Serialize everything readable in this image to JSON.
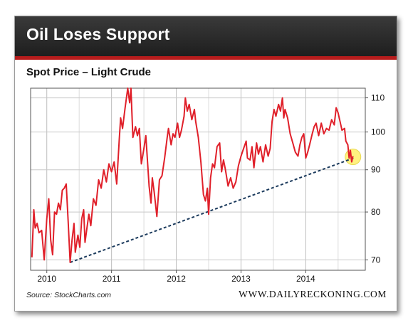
{
  "header": {
    "title": "Oil Loses Support"
  },
  "footer": {
    "source": "Source: StockCharts.com",
    "brand": "WWW.DAILYRECKONING.COM"
  },
  "colors": {
    "header_bg": "#262626",
    "accent": "#b71c1c",
    "series": "#e0202a",
    "trendline": "#1b3a5c",
    "highlight": "#fff27a"
  },
  "chart_data": {
    "type": "line",
    "title": "Spot Price – Light Crude",
    "xlabel": "",
    "ylabel": "",
    "xlim": [
      2009.75,
      2014.92
    ],
    "ylim": [
      68,
      113
    ],
    "y_scale": "log",
    "y_axis_side": "right",
    "grid": true,
    "xticks": [
      2010,
      2011,
      2012,
      2013,
      2014
    ],
    "xtick_labels": [
      "2010",
      "2011",
      "2012",
      "2013",
      "2014"
    ],
    "yticks": [
      70,
      80,
      90,
      100,
      110
    ],
    "ytick_labels": [
      "70",
      "80",
      "90",
      "100",
      "110"
    ],
    "series": [
      {
        "values": [
          [
            2009.77,
            70.5
          ],
          [
            2009.8,
            80.5
          ],
          [
            2009.82,
            76.5
          ],
          [
            2009.85,
            77.5
          ],
          [
            2009.88,
            75.5
          ],
          [
            2009.92,
            76.0
          ],
          [
            2009.96,
            70.0
          ],
          [
            2010.0,
            78.5
          ],
          [
            2010.03,
            83.0
          ],
          [
            2010.06,
            74.0
          ],
          [
            2010.09,
            71.0
          ],
          [
            2010.12,
            80.0
          ],
          [
            2010.15,
            79.5
          ],
          [
            2010.18,
            82.0
          ],
          [
            2010.21,
            80.5
          ],
          [
            2010.24,
            85.0
          ],
          [
            2010.27,
            85.5
          ],
          [
            2010.3,
            86.5
          ],
          [
            2010.33,
            78.0
          ],
          [
            2010.36,
            69.5
          ],
          [
            2010.39,
            74.0
          ],
          [
            2010.42,
            77.5
          ],
          [
            2010.44,
            71.5
          ],
          [
            2010.48,
            75.0
          ],
          [
            2010.51,
            72.5
          ],
          [
            2010.54,
            78.5
          ],
          [
            2010.57,
            80.5
          ],
          [
            2010.59,
            73.5
          ],
          [
            2010.62,
            76.5
          ],
          [
            2010.65,
            79.5
          ],
          [
            2010.68,
            77.0
          ],
          [
            2010.72,
            83.0
          ],
          [
            2010.76,
            81.5
          ],
          [
            2010.8,
            87.5
          ],
          [
            2010.84,
            85.5
          ],
          [
            2010.88,
            90.0
          ],
          [
            2010.92,
            87.0
          ],
          [
            2010.96,
            91.5
          ],
          [
            2011.0,
            89.5
          ],
          [
            2011.04,
            92.0
          ],
          [
            2011.08,
            86.5
          ],
          [
            2011.12,
            98.0
          ],
          [
            2011.14,
            104.0
          ],
          [
            2011.17,
            101.0
          ],
          [
            2011.21,
            107.0
          ],
          [
            2011.25,
            113.0
          ],
          [
            2011.28,
            108.5
          ],
          [
            2011.3,
            113.0
          ],
          [
            2011.33,
            98.5
          ],
          [
            2011.37,
            101.5
          ],
          [
            2011.4,
            99.0
          ],
          [
            2011.43,
            101.0
          ],
          [
            2011.46,
            91.5
          ],
          [
            2011.5,
            95.5
          ],
          [
            2011.53,
            99.0
          ],
          [
            2011.58,
            86.0
          ],
          [
            2011.61,
            82.0
          ],
          [
            2011.63,
            88.0
          ],
          [
            2011.66,
            84.5
          ],
          [
            2011.7,
            79.0
          ],
          [
            2011.74,
            87.5
          ],
          [
            2011.78,
            88.5
          ],
          [
            2011.82,
            93.0
          ],
          [
            2011.86,
            98.5
          ],
          [
            2011.88,
            101.0
          ],
          [
            2011.92,
            96.5
          ],
          [
            2011.95,
            99.5
          ],
          [
            2011.98,
            98.5
          ],
          [
            2012.02,
            102.5
          ],
          [
            2012.05,
            98.5
          ],
          [
            2012.08,
            100.5
          ],
          [
            2012.12,
            104.5
          ],
          [
            2012.14,
            110.0
          ],
          [
            2012.17,
            106.0
          ],
          [
            2012.2,
            108.0
          ],
          [
            2012.24,
            103.5
          ],
          [
            2012.28,
            106.5
          ],
          [
            2012.3,
            103.0
          ],
          [
            2012.34,
            98.5
          ],
          [
            2012.38,
            92.0
          ],
          [
            2012.42,
            84.0
          ],
          [
            2012.45,
            82.5
          ],
          [
            2012.48,
            85.5
          ],
          [
            2012.5,
            79.5
          ],
          [
            2012.53,
            88.0
          ],
          [
            2012.56,
            91.5
          ],
          [
            2012.59,
            90.5
          ],
          [
            2012.63,
            96.0
          ],
          [
            2012.67,
            97.0
          ],
          [
            2012.7,
            89.5
          ],
          [
            2012.73,
            92.5
          ],
          [
            2012.76,
            90.0
          ],
          [
            2012.8,
            86.0
          ],
          [
            2012.84,
            88.0
          ],
          [
            2012.88,
            85.5
          ],
          [
            2012.92,
            87.0
          ],
          [
            2012.96,
            91.0
          ],
          [
            2013.0,
            93.5
          ],
          [
            2013.04,
            95.5
          ],
          [
            2013.08,
            97.5
          ],
          [
            2013.1,
            93.0
          ],
          [
            2013.14,
            92.5
          ],
          [
            2013.17,
            96.0
          ],
          [
            2013.2,
            90.5
          ],
          [
            2013.24,
            97.0
          ],
          [
            2013.27,
            94.0
          ],
          [
            2013.3,
            96.0
          ],
          [
            2013.34,
            92.0
          ],
          [
            2013.38,
            96.5
          ],
          [
            2013.42,
            93.5
          ],
          [
            2013.45,
            95.5
          ],
          [
            2013.48,
            103.0
          ],
          [
            2013.51,
            106.5
          ],
          [
            2013.54,
            104.5
          ],
          [
            2013.58,
            108.0
          ],
          [
            2013.61,
            106.0
          ],
          [
            2013.64,
            110.0
          ],
          [
            2013.66,
            104.0
          ],
          [
            2013.68,
            106.5
          ],
          [
            2013.72,
            104.0
          ],
          [
            2013.76,
            99.5
          ],
          [
            2013.8,
            97.0
          ],
          [
            2013.84,
            94.5
          ],
          [
            2013.88,
            93.5
          ],
          [
            2013.91,
            96.5
          ],
          [
            2013.94,
            98.5
          ],
          [
            2013.97,
            99.5
          ],
          [
            2014.0,
            93.0
          ],
          [
            2014.03,
            94.5
          ],
          [
            2014.06,
            96.5
          ],
          [
            2014.1,
            99.5
          ],
          [
            2014.13,
            101.5
          ],
          [
            2014.16,
            102.5
          ],
          [
            2014.2,
            99.0
          ],
          [
            2014.24,
            102.5
          ],
          [
            2014.28,
            99.5
          ],
          [
            2014.32,
            101.0
          ],
          [
            2014.36,
            100.5
          ],
          [
            2014.4,
            103.5
          ],
          [
            2014.44,
            102.0
          ],
          [
            2014.47,
            107.0
          ],
          [
            2014.5,
            105.5
          ],
          [
            2014.53,
            103.0
          ],
          [
            2014.56,
            100.5
          ],
          [
            2014.6,
            101.0
          ],
          [
            2014.62,
            97.5
          ],
          [
            2014.65,
            96.5
          ],
          [
            2014.67,
            93.0
          ],
          [
            2014.69,
            95.0
          ],
          [
            2014.71,
            92.0
          ],
          [
            2014.73,
            93.5
          ]
        ]
      }
    ],
    "trendline": {
      "style": "dashed",
      "points": [
        [
          2010.36,
          69.5
        ],
        [
          2014.74,
          93.0
        ]
      ]
    },
    "annotations": [
      {
        "type": "highlight-circle",
        "x": 2014.73,
        "y": 93.3
      }
    ]
  }
}
